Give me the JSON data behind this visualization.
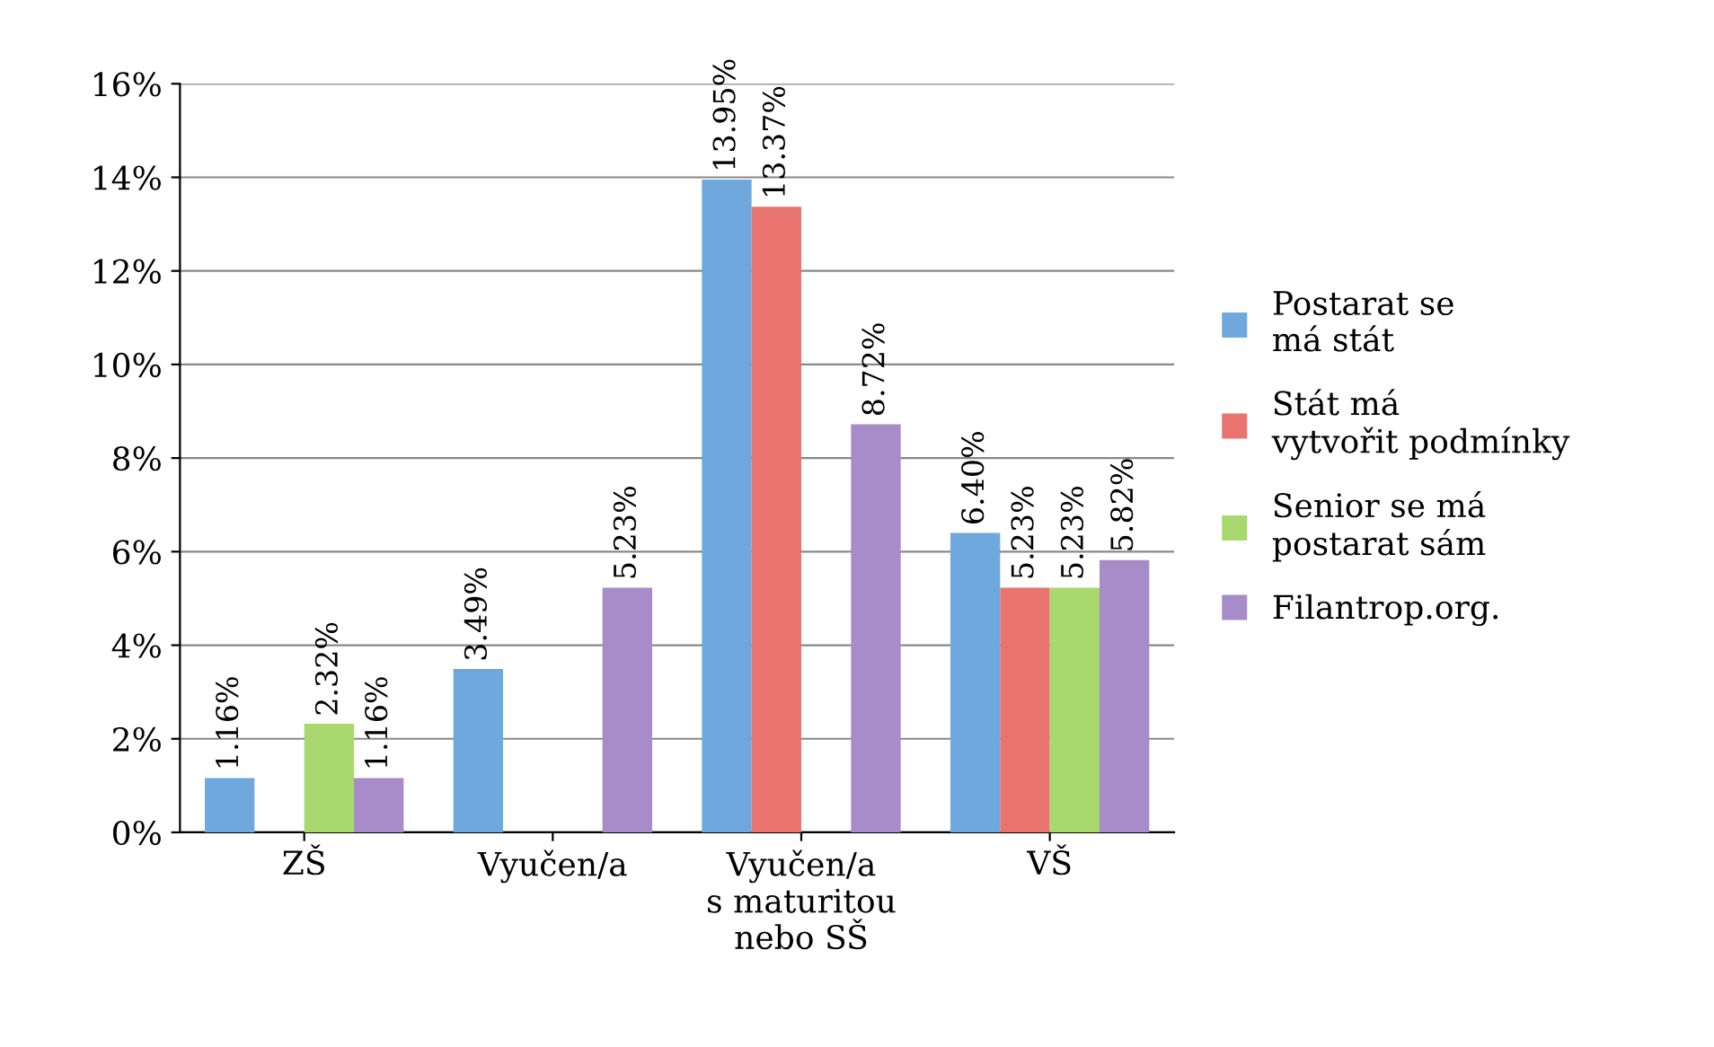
{
  "chart_data": {
    "type": "bar",
    "categories": [
      "ZŠ",
      "Vyučen/a",
      "Vyučen/a\ns maturitou\nnebo SŠ",
      "VŠ"
    ],
    "series": [
      {
        "name": "Postarat se\nmá stát",
        "color": "#6fa8dc",
        "values": [
          1.16,
          3.49,
          13.95,
          6.4
        ],
        "value_labels": [
          "1.16%",
          "3.49%",
          "13.95%",
          "6.40%"
        ]
      },
      {
        "name": "Stát má\nvytvořit podmínky",
        "color": "#e8736f",
        "values": [
          null,
          null,
          13.37,
          5.23
        ],
        "value_labels": [
          null,
          null,
          "13.37%",
          "5.23%"
        ]
      },
      {
        "name": "Senior se má\npostarat sám",
        "color": "#a9d86e",
        "values": [
          2.32,
          null,
          null,
          5.23
        ],
        "value_labels": [
          "2.32%",
          null,
          null,
          "5.23%"
        ]
      },
      {
        "name": "Filantrop.org.",
        "color": "#a88bc9",
        "values": [
          1.16,
          5.23,
          8.72,
          5.82
        ],
        "value_labels": [
          "1.16%",
          "5.23%",
          "8.72%",
          "5.82%"
        ]
      }
    ],
    "ylim": [
      0,
      16
    ],
    "yticks": [
      {
        "value": 0,
        "label": "0%"
      },
      {
        "value": 2,
        "label": "2%"
      },
      {
        "value": 4,
        "label": "4%"
      },
      {
        "value": 6,
        "label": "6%"
      },
      {
        "value": 8,
        "label": "8%"
      },
      {
        "value": 10,
        "label": "10%"
      },
      {
        "value": 12,
        "label": "12%"
      },
      {
        "value": 14,
        "label": "14%"
      },
      {
        "value": 16,
        "label": "16%"
      }
    ],
    "grid": "y",
    "legend": "right"
  }
}
